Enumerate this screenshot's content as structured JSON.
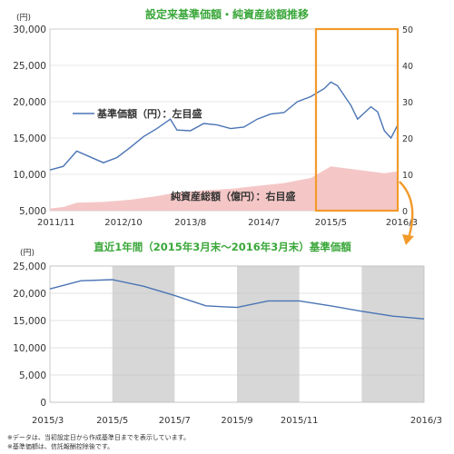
{
  "colors": {
    "line": "#4a74b4",
    "area": "#f4c7c6",
    "title": "#3aa73a",
    "highlight_box": "#f39a2b",
    "arrow": "#f39a2b",
    "shade": "#d7d7d7",
    "grid": "#d0d0d0",
    "axis_text": "#333333"
  },
  "chart_data": [
    {
      "type": "line",
      "title": "設定来基準価額・純資産総額推移",
      "y_unit_left": "(円)",
      "x_ticks": [
        "2011/11",
        "2012/10",
        "2013/8",
        "2014/7",
        "2015/5",
        "2016/3"
      ],
      "y_left_ticks": [
        "5,000",
        "10,000",
        "15,000",
        "20,000",
        "25,000",
        "30,000"
      ],
      "y_right_ticks": [
        "0",
        "10",
        "20",
        "30",
        "40",
        "50"
      ],
      "ylim_left": [
        5000,
        30000
      ],
      "ylim_right": [
        0,
        50
      ],
      "highlight_region": {
        "start": "2015/3",
        "end": "2016/3"
      },
      "series": [
        {
          "name": "基準価額（円）：左目盛",
          "axis": "left",
          "x": [
            "2011/11",
            "2012/1",
            "2012/3",
            "2012/5",
            "2012/7",
            "2012/9",
            "2012/11",
            "2013/1",
            "2013/3",
            "2013/5",
            "2013/6",
            "2013/8",
            "2013/10",
            "2013/12",
            "2014/2",
            "2014/4",
            "2014/6",
            "2014/8",
            "2014/10",
            "2014/12",
            "2015/2",
            "2015/4",
            "2015/5",
            "2015/6",
            "2015/8",
            "2015/9",
            "2015/11",
            "2015/12",
            "2016/1",
            "2016/2",
            "2016/3"
          ],
          "values": [
            10600,
            11100,
            13200,
            12400,
            11600,
            12300,
            13700,
            15200,
            16300,
            17600,
            16100,
            16000,
            17000,
            16800,
            16300,
            16500,
            17600,
            18300,
            18500,
            20000,
            20700,
            21800,
            22700,
            22200,
            19500,
            17600,
            19300,
            18600,
            16000,
            15000,
            16800
          ]
        },
        {
          "name": "純資産総額（億円）：右目盛",
          "axis": "right",
          "x": [
            "2011/11",
            "2012/1",
            "2012/3",
            "2012/7",
            "2012/11",
            "2013/3",
            "2013/6",
            "2013/10",
            "2014/2",
            "2014/6",
            "2014/10",
            "2015/2",
            "2015/5",
            "2015/8",
            "2015/10",
            "2016/1",
            "2016/3"
          ],
          "values": [
            0.6,
            1.0,
            2.2,
            2.4,
            3.0,
            4.0,
            5.0,
            5.6,
            6.0,
            6.8,
            7.6,
            9.0,
            12.2,
            11.5,
            11.0,
            10.3,
            10.8
          ]
        }
      ]
    },
    {
      "type": "line",
      "title": "直近1年間（2015年3月末～2016年3月末）基準価額",
      "y_unit": "(円)",
      "x_ticks": [
        "2015/3",
        "2015/5",
        "2015/7",
        "2015/9",
        "2015/11",
        "2016/3"
      ],
      "y_ticks": [
        "0",
        "5,000",
        "10,000",
        "15,000",
        "20,000",
        "25,000"
      ],
      "ylim": [
        0,
        25000
      ],
      "shaded_periods": [
        [
          "2015/5",
          "2015/7"
        ],
        [
          "2015/9",
          "2015/11"
        ],
        [
          "2016/1",
          "2016/3"
        ]
      ],
      "series": [
        {
          "name": "基準価額",
          "x": [
            "2015/3",
            "2015/4",
            "2015/5",
            "2015/6",
            "2015/7",
            "2015/8",
            "2015/9",
            "2015/10",
            "2015/11",
            "2015/12",
            "2016/1",
            "2016/2",
            "2016/3"
          ],
          "values": [
            20800,
            22300,
            22500,
            21300,
            19600,
            17700,
            17400,
            18600,
            18600,
            17700,
            16700,
            15800,
            15300
          ]
        }
      ]
    }
  ],
  "arrow_icon": "curved-arrow",
  "footnotes": [
    "※データは、当初設定日から作成基準日までを表示しています。",
    "※基準価額は、信託報酬控除後です。"
  ]
}
